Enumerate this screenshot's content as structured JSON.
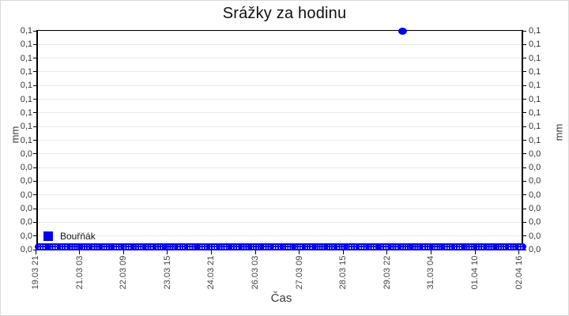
{
  "title": "Srážky za hodinu",
  "colors": {
    "series": "#0000f0",
    "grid": "#e9e9e9",
    "axis": "#000000",
    "tick_text": "#3a3a3a",
    "background": "#ffffff"
  },
  "legend": {
    "label": "Bouřňák"
  },
  "axes": {
    "x": {
      "label": "Čas",
      "tick_labels": [
        "19.03 21",
        "21.03 03",
        "22.03 09",
        "23.03 15",
        "24.03 21",
        "26.03 03",
        "27.03 09",
        "28.03 15",
        "29.03 22",
        "31.03 04",
        "01.04 10",
        "02.04 16"
      ]
    },
    "y": {
      "label_left": "mm",
      "label_right": "mm",
      "tick_labels": [
        "0,1",
        "0,1",
        "0,1",
        "0,1",
        "0,1",
        "0,1",
        "0,1",
        "0,1",
        "0,1",
        "0,0",
        "0,0",
        "0,0",
        "0,0",
        "0,0",
        "0,0",
        "0,0",
        "0,0"
      ]
    }
  },
  "chart_data": {
    "type": "scatter",
    "title": "Srážky za hodinu",
    "xlabel": "Čas",
    "ylabel": "mm",
    "ylabel_right": "mm",
    "ylim": [
      0.0,
      0.1
    ],
    "grid": "horizontal gridlines only, light gray",
    "legend_position": "inside plot, bottom-left",
    "x_tick_labels": [
      "19.03 21",
      "21.03 03",
      "22.03 09",
      "23.03 15",
      "24.03 21",
      "26.03 03",
      "27.03 09",
      "28.03 15",
      "29.03 22",
      "31.03 04",
      "01.04 10",
      "02.04 16"
    ],
    "x_tick_interval_hours": 30,
    "y_tick_labels": [
      "0,1",
      "0,1",
      "0,1",
      "0,1",
      "0,1",
      "0,1",
      "0,1",
      "0,1",
      "0,1",
      "0,0",
      "0,0",
      "0,0",
      "0,0",
      "0,0",
      "0,0",
      "0,0",
      "0,0"
    ],
    "y_axis_mirrored_right": true,
    "series": [
      {
        "name": "Bouřňák",
        "color": "#0000f0",
        "marker": "square/round, dense",
        "summary": "Hourly precipitation values of 0,0 mm for every hour from 19.03 21h to 02.04 16h (rendered as a continuous dotted blue band along the baseline), except one outlier of 0,1 mm.",
        "baseline_value_mm": 0.0,
        "outlier": {
          "value_mm": 0.1,
          "approx_time": "30.03 (between 29.03 22 and 31.03 04)",
          "x_fraction": 0.755
        }
      }
    ]
  }
}
